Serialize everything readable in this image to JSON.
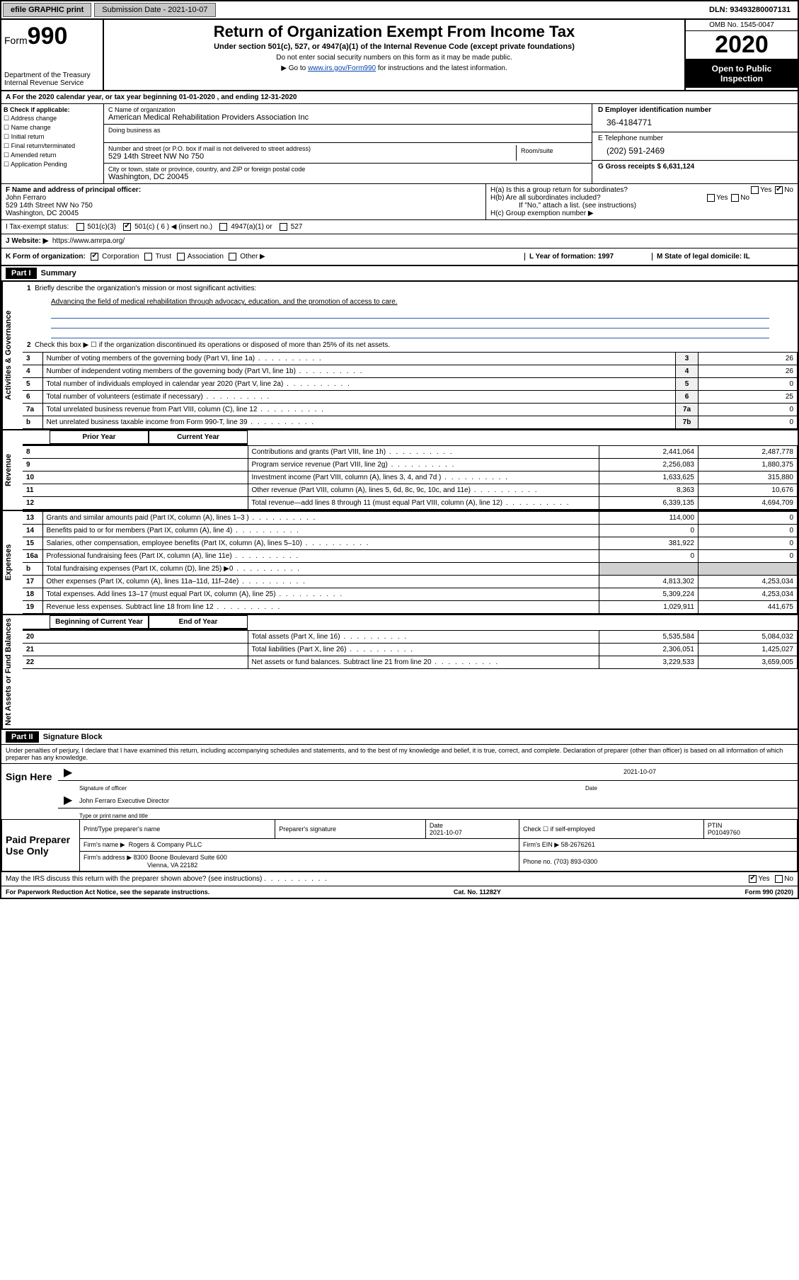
{
  "topbar": {
    "efile": "efile GRAPHIC print",
    "sub_label": "Submission Date - 2021-10-07",
    "dln": "DLN: 93493280007131"
  },
  "header": {
    "form_word": "Form",
    "form_num": "990",
    "dept": "Department of the Treasury",
    "irs": "Internal Revenue Service",
    "title": "Return of Organization Exempt From Income Tax",
    "subtitle": "Under section 501(c), 527, or 4947(a)(1) of the Internal Revenue Code (except private foundations)",
    "note1": "Do not enter social security numbers on this form as it may be made public.",
    "note2_pre": "Go to ",
    "note2_link": "www.irs.gov/Form990",
    "note2_post": " for instructions and the latest information.",
    "omb": "OMB No. 1545-0047",
    "year": "2020",
    "open1": "Open to Public",
    "open2": "Inspection"
  },
  "period": "A   For the 2020 calendar year, or tax year beginning 01-01-2020    , and ending 12-31-2020",
  "boxB": {
    "label": "B Check if applicable:",
    "opts": [
      "Address change",
      "Name change",
      "Initial return",
      "Final return/terminated",
      "Amended return",
      "Application Pending"
    ]
  },
  "boxC": {
    "name_lbl": "C Name of organization",
    "name": "American Medical Rehabilitation Providers Association Inc",
    "dba_lbl": "Doing business as",
    "addr_lbl": "Number and street (or P.O. box if mail is not delivered to street address)",
    "addr": "529 14th Street NW No 750",
    "room_lbl": "Room/suite",
    "city_lbl": "City or town, state or province, country, and ZIP or foreign postal code",
    "city": "Washington, DC  20045"
  },
  "boxD": {
    "ein_lbl": "D Employer identification number",
    "ein": "36-4184771",
    "tel_lbl": "E Telephone number",
    "tel": "(202) 591-2469",
    "gross_lbl": "G Gross receipts $ 6,631,124"
  },
  "boxF": {
    "lbl": "F  Name and address of principal officer:",
    "name": "John Ferraro",
    "addr1": "529 14th Street NW No 750",
    "addr2": "Washington, DC  20045"
  },
  "boxH": {
    "ha_lbl": "H(a)  Is this a group return for subordinates?",
    "hb_lbl": "H(b)  Are all subordinates included?",
    "hb_note": "If \"No,\" attach a list. (see instructions)",
    "hc_lbl": "H(c)  Group exemption number ▶",
    "yes": "Yes",
    "no": "No"
  },
  "boxI": {
    "lbl": "I   Tax-exempt status:",
    "o1": "501(c)(3)",
    "o2": "501(c) ( 6 ) ◀ (insert no.)",
    "o3": "4947(a)(1) or",
    "o4": "527"
  },
  "boxJ": {
    "lbl": "J   Website: ▶",
    "val": "https://www.amrpa.org/"
  },
  "boxK": {
    "lbl": "K Form of organization:",
    "o1": "Corporation",
    "o2": "Trust",
    "o3": "Association",
    "o4": "Other ▶",
    "l_lbl": "L Year of formation: 1997",
    "m_lbl": "M State of legal domicile: IL"
  },
  "part1": {
    "tab": "Part I",
    "title": "Summary",
    "l1_lbl": "Briefly describe the organization's mission or most significant activities:",
    "l1_val": "Advancing the field of medical rehabilitation through advocacy, education, and the promotion of access to care.",
    "l2": "Check this box ▶ ☐  if the organization discontinued its operations or disposed of more than 25% of its net assets.",
    "side_a": "Activities & Governance",
    "side_r": "Revenue",
    "side_e": "Expenses",
    "side_n": "Net Assets or Fund Balances",
    "rows_ag": [
      {
        "n": "3",
        "d": "Number of voting members of the governing body (Part VI, line 1a)",
        "c": "3",
        "v": "26"
      },
      {
        "n": "4",
        "d": "Number of independent voting members of the governing body (Part VI, line 1b)",
        "c": "4",
        "v": "26"
      },
      {
        "n": "5",
        "d": "Total number of individuals employed in calendar year 2020 (Part V, line 2a)",
        "c": "5",
        "v": "0"
      },
      {
        "n": "6",
        "d": "Total number of volunteers (estimate if necessary)",
        "c": "6",
        "v": "25"
      },
      {
        "n": "7a",
        "d": "Total unrelated business revenue from Part VIII, column (C), line 12",
        "c": "7a",
        "v": "0"
      },
      {
        "n": "b",
        "d": "Net unrelated business taxable income from Form 990-T, line 39",
        "c": "7b",
        "v": "0"
      }
    ],
    "py_hdr": "Prior Year",
    "cy_hdr": "Current Year",
    "rows_rev": [
      {
        "n": "8",
        "d": "Contributions and grants (Part VIII, line 1h)",
        "py": "2,441,064",
        "cy": "2,487,778"
      },
      {
        "n": "9",
        "d": "Program service revenue (Part VIII, line 2g)",
        "py": "2,256,083",
        "cy": "1,880,375"
      },
      {
        "n": "10",
        "d": "Investment income (Part VIII, column (A), lines 3, 4, and 7d )",
        "py": "1,633,625",
        "cy": "315,880"
      },
      {
        "n": "11",
        "d": "Other revenue (Part VIII, column (A), lines 5, 6d, 8c, 9c, 10c, and 11e)",
        "py": "8,363",
        "cy": "10,676"
      },
      {
        "n": "12",
        "d": "Total revenue—add lines 8 through 11 (must equal Part VIII, column (A), line 12)",
        "py": "6,339,135",
        "cy": "4,694,709"
      }
    ],
    "rows_exp": [
      {
        "n": "13",
        "d": "Grants and similar amounts paid (Part IX, column (A), lines 1–3 )",
        "py": "114,000",
        "cy": "0"
      },
      {
        "n": "14",
        "d": "Benefits paid to or for members (Part IX, column (A), line 4)",
        "py": "0",
        "cy": "0"
      },
      {
        "n": "15",
        "d": "Salaries, other compensation, employee benefits (Part IX, column (A), lines 5–10)",
        "py": "381,922",
        "cy": "0"
      },
      {
        "n": "16a",
        "d": "Professional fundraising fees (Part IX, column (A), line 11e)",
        "py": "0",
        "cy": "0"
      },
      {
        "n": "b",
        "d": "Total fundraising expenses (Part IX, column (D), line 25) ▶0",
        "py": "",
        "cy": ""
      },
      {
        "n": "17",
        "d": "Other expenses (Part IX, column (A), lines 11a–11d, 11f–24e)",
        "py": "4,813,302",
        "cy": "4,253,034"
      },
      {
        "n": "18",
        "d": "Total expenses. Add lines 13–17 (must equal Part IX, column (A), line 25)",
        "py": "5,309,224",
        "cy": "4,253,034"
      },
      {
        "n": "19",
        "d": "Revenue less expenses. Subtract line 18 from line 12",
        "py": "1,029,911",
        "cy": "441,675"
      }
    ],
    "by_hdr": "Beginning of Current Year",
    "ey_hdr": "End of Year",
    "rows_net": [
      {
        "n": "20",
        "d": "Total assets (Part X, line 16)",
        "py": "5,535,584",
        "cy": "5,084,032"
      },
      {
        "n": "21",
        "d": "Total liabilities (Part X, line 26)",
        "py": "2,306,051",
        "cy": "1,425,027"
      },
      {
        "n": "22",
        "d": "Net assets or fund balances. Subtract line 21 from line 20",
        "py": "3,229,533",
        "cy": "3,659,005"
      }
    ]
  },
  "part2": {
    "tab": "Part II",
    "title": "Signature Block",
    "penalty": "Under penalties of perjury, I declare that I have examined this return, including accompanying schedules and statements, and to the best of my knowledge and belief, it is true, correct, and complete. Declaration of preparer (other than officer) is based on all information of which preparer has any knowledge.",
    "sign_here": "Sign Here",
    "sig_officer_lbl": "Signature of officer",
    "sig_date": "2021-10-07",
    "date_lbl": "Date",
    "officer_name": "John Ferraro  Executive Director",
    "officer_lbl": "Type or print name and title",
    "paid": "Paid Preparer Use Only",
    "prep_name_lbl": "Print/Type preparer's name",
    "prep_sig_lbl": "Preparer's signature",
    "prep_date_lbl": "Date",
    "prep_date": "2021-10-07",
    "prep_check": "Check ☐ if self-employed",
    "ptin_lbl": "PTIN",
    "ptin": "P01049760",
    "firm_name_lbl": "Firm's name    ▶",
    "firm_name": "Rogers & Company PLLC",
    "firm_ein_lbl": "Firm's EIN ▶",
    "firm_ein": "58-2676261",
    "firm_addr_lbl": "Firm's address ▶",
    "firm_addr1": "8300 Boone Boulevard Suite 600",
    "firm_addr2": "Vienna, VA  22182",
    "phone_lbl": "Phone no.",
    "phone": "(703) 893-0300",
    "discuss": "May the IRS discuss this return with the preparer shown above? (see instructions)",
    "yes": "Yes",
    "no": "No"
  },
  "footer": {
    "left": "For Paperwork Reduction Act Notice, see the separate instructions.",
    "mid": "Cat. No. 11282Y",
    "right": "Form 990 (2020)"
  }
}
